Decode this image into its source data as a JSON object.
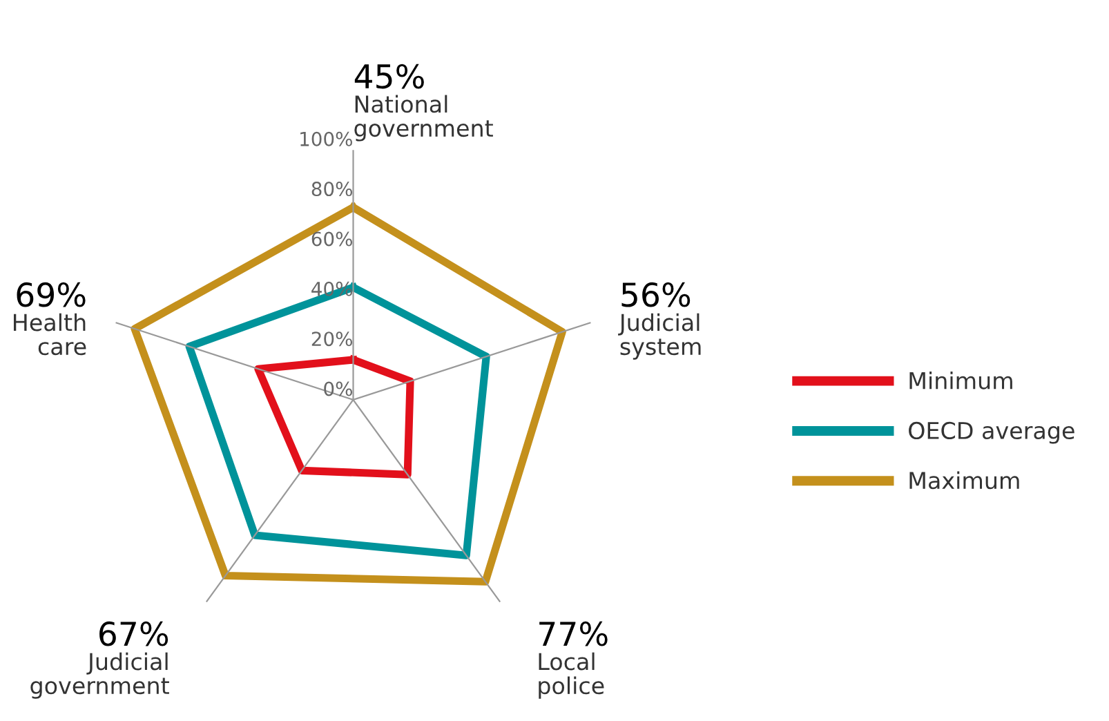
{
  "chart_data": {
    "type": "radar",
    "categories": [
      "National government",
      "Judicial system",
      "Local police",
      "Judicial government",
      "Health care"
    ],
    "series": [
      {
        "name": "Minimum",
        "color": "#e2101b",
        "values": [
          16,
          24,
          37,
          35,
          40
        ]
      },
      {
        "name": "OECD average",
        "color": "#00939a",
        "values": [
          45,
          56,
          77,
          67,
          69
        ]
      },
      {
        "name": "Maximum",
        "color": "#c4901c",
        "values": [
          77,
          88,
          90,
          87,
          92
        ]
      }
    ],
    "ylim": [
      0,
      100
    ],
    "yticks": [
      {
        "value": 0,
        "label": "0%"
      },
      {
        "value": 20,
        "label": "20%"
      },
      {
        "value": 40,
        "label": "40%"
      },
      {
        "value": 60,
        "label": "60%"
      },
      {
        "value": 80,
        "label": "80%"
      },
      {
        "value": 100,
        "label": "100%"
      }
    ],
    "annotations": [
      "45%",
      "56%",
      "77%",
      "67%",
      "69%"
    ],
    "grid": "x",
    "legend": "right",
    "line_style": "solid",
    "marker": "none"
  }
}
